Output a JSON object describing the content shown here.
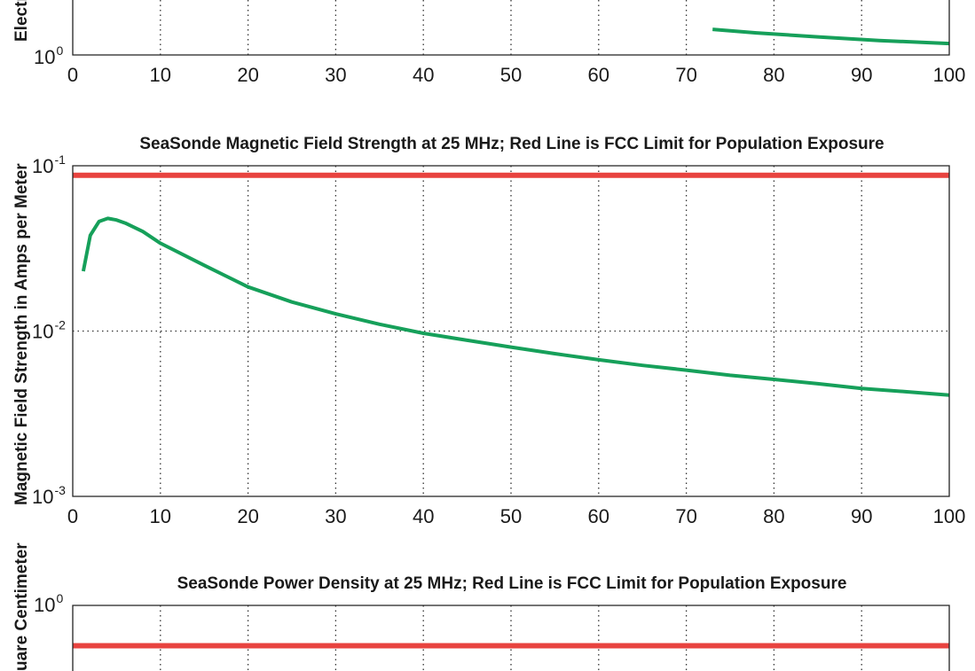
{
  "chart_data": [
    {
      "type": "line",
      "title": "",
      "ylabel": "Electri",
      "xlim": [
        0,
        100
      ],
      "xticks": [
        "0",
        "10",
        "20",
        "30",
        "40",
        "50",
        "60",
        "70",
        "80",
        "90",
        "100"
      ],
      "yscale": "log",
      "ytick_label": {
        "base": "10",
        "exp": "0"
      },
      "grid": true,
      "series": [
        {
          "color": "#16a05a",
          "x": [
            73,
            78,
            85,
            92,
            100
          ],
          "y": [
            2.3,
            2.05,
            1.8,
            1.6,
            1.45
          ]
        }
      ]
    },
    {
      "type": "line",
      "title": "SeaSonde Magnetic Field Strength at 25 MHz; Red Line is FCC Limit for Population Exposure",
      "ylabel": "Magnetic Field Strength in Amps per Meter",
      "xlim": [
        0,
        100
      ],
      "ylim": [
        0.001,
        0.1
      ],
      "yscale": "log",
      "xticks": [
        "0",
        "10",
        "20",
        "30",
        "40",
        "50",
        "60",
        "70",
        "80",
        "90",
        "100"
      ],
      "yticks": [
        {
          "base": "10",
          "exp": "-1"
        },
        {
          "base": "10",
          "exp": "-2"
        },
        {
          "base": "10",
          "exp": "-3"
        }
      ],
      "grid": true,
      "series": [
        {
          "color": "#16a05a",
          "x": [
            1.2,
            2,
            3,
            4,
            5,
            6,
            8,
            10,
            15,
            20,
            25,
            30,
            35,
            40,
            45,
            50,
            55,
            60,
            65,
            70,
            75,
            80,
            85,
            90,
            95,
            100
          ],
          "y": [
            0.023,
            0.038,
            0.046,
            0.048,
            0.047,
            0.045,
            0.04,
            0.034,
            0.025,
            0.0185,
            0.015,
            0.0127,
            0.011,
            0.0097,
            0.0088,
            0.008,
            0.0073,
            0.0067,
            0.0062,
            0.0058,
            0.0054,
            0.0051,
            0.0048,
            0.0045,
            0.0043,
            0.0041
          ]
        },
        {
          "color": "#e8433f",
          "x": [
            0,
            100
          ],
          "y": [
            0.0875,
            0.0875
          ]
        }
      ]
    },
    {
      "type": "line",
      "title": "SeaSonde Power Density at 25 MHz; Red Line is FCC Limit for Population Exposure",
      "ylabel": "uare Centimeter",
      "xlim": [
        0,
        100
      ],
      "yscale": "log",
      "yticks": [
        {
          "base": "10",
          "exp": "0"
        }
      ],
      "grid": true,
      "series": [
        {
          "color": "#e8433f",
          "x": [
            0,
            100
          ],
          "y": [
            0.52,
            0.52
          ]
        }
      ]
    }
  ]
}
